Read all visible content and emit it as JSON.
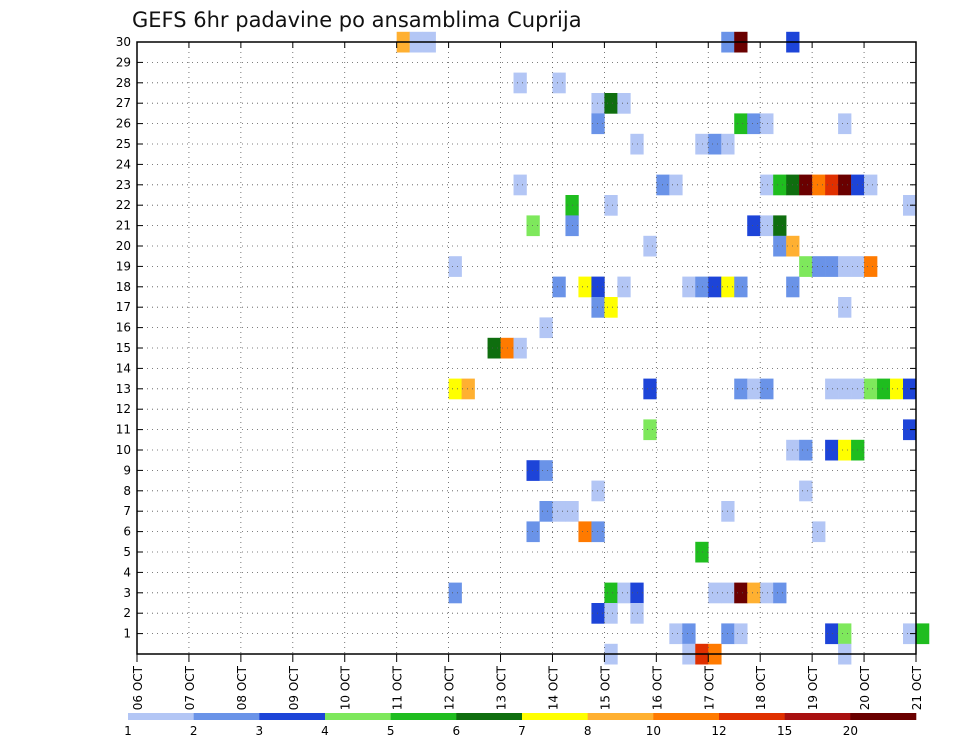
{
  "chart_data": {
    "type": "heatmap",
    "title": "GEFS 6hr padavine po ansamblima Cuprija",
    "xlabel": "",
    "ylabel": "",
    "x_tick_labels": [
      "06 OCT",
      "07 OCT",
      "08 OCT",
      "09 OCT",
      "10 OCT",
      "11 OCT",
      "12 OCT",
      "13 OCT",
      "14 OCT",
      "15 OCT",
      "16 OCT",
      "17 OCT",
      "18 OCT",
      "19 OCT",
      "20 OCT",
      "21 OCT"
    ],
    "y_tick_labels": [
      "1",
      "2",
      "3",
      "4",
      "5",
      "6",
      "7",
      "8",
      "9",
      "10",
      "11",
      "12",
      "13",
      "14",
      "15",
      "16",
      "17",
      "18",
      "19",
      "20",
      "21",
      "22",
      "23",
      "24",
      "25",
      "26",
      "27",
      "28",
      "29",
      "30"
    ],
    "x_unit_days": 1,
    "time_step_hours": 6,
    "grid": true,
    "colorbar": {
      "labels": [
        "1",
        "2",
        "3",
        "4",
        "5",
        "6",
        "7",
        "8",
        "10",
        "12",
        "15",
        "20"
      ],
      "colors": [
        "#b3c6f5",
        "#6a93e8",
        "#1d44d8",
        "#7ee85c",
        "#1fbd1f",
        "#0f6e0f",
        "#ffff00",
        "#ffb031",
        "#ff7a00",
        "#e03000",
        "#a81010",
        "#6a0000"
      ]
    },
    "cells": [
      {
        "member": 30,
        "day": 5.0,
        "level": 8
      },
      {
        "member": 30,
        "day": 5.25,
        "level": 1
      },
      {
        "member": 30,
        "day": 5.5,
        "level": 1
      },
      {
        "member": 30,
        "day": 11.25,
        "level": 2
      },
      {
        "member": 30,
        "day": 11.5,
        "level": 12
      },
      {
        "member": 30,
        "day": 12.5,
        "level": 3
      },
      {
        "member": 28,
        "day": 7.25,
        "level": 1
      },
      {
        "member": 28,
        "day": 8.0,
        "level": 1
      },
      {
        "member": 27,
        "day": 8.75,
        "level": 1
      },
      {
        "member": 27,
        "day": 9.0,
        "level": 6
      },
      {
        "member": 27,
        "day": 9.25,
        "level": 1
      },
      {
        "member": 26,
        "day": 8.75,
        "level": 2
      },
      {
        "member": 26,
        "day": 11.5,
        "level": 5
      },
      {
        "member": 26,
        "day": 11.75,
        "level": 2
      },
      {
        "member": 26,
        "day": 12.0,
        "level": 1
      },
      {
        "member": 26,
        "day": 13.5,
        "level": 1
      },
      {
        "member": 25,
        "day": 9.5,
        "level": 1
      },
      {
        "member": 25,
        "day": 10.75,
        "level": 1
      },
      {
        "member": 25,
        "day": 11.0,
        "level": 2
      },
      {
        "member": 25,
        "day": 11.25,
        "level": 1
      },
      {
        "member": 23,
        "day": 7.25,
        "level": 1
      },
      {
        "member": 23,
        "day": 10.0,
        "level": 2
      },
      {
        "member": 23,
        "day": 10.25,
        "level": 1
      },
      {
        "member": 23,
        "day": 12.0,
        "level": 1
      },
      {
        "member": 23,
        "day": 12.25,
        "level": 5
      },
      {
        "member": 23,
        "day": 12.5,
        "level": 6
      },
      {
        "member": 23,
        "day": 12.75,
        "level": 12
      },
      {
        "member": 23,
        "day": 13.0,
        "level": 9
      },
      {
        "member": 23,
        "day": 13.25,
        "level": 10
      },
      {
        "member": 23,
        "day": 13.5,
        "level": 12
      },
      {
        "member": 23,
        "day": 13.75,
        "level": 3
      },
      {
        "member": 23,
        "day": 14.0,
        "level": 1
      },
      {
        "member": 22,
        "day": 8.25,
        "level": 5
      },
      {
        "member": 22,
        "day": 9.0,
        "level": 1
      },
      {
        "member": 22,
        "day": 14.75,
        "level": 1
      },
      {
        "member": 21,
        "day": 7.5,
        "level": 4
      },
      {
        "member": 21,
        "day": 8.25,
        "level": 2
      },
      {
        "member": 21,
        "day": 11.75,
        "level": 3
      },
      {
        "member": 21,
        "day": 12.0,
        "level": 1
      },
      {
        "member": 21,
        "day": 12.25,
        "level": 6
      },
      {
        "member": 20,
        "day": 9.75,
        "level": 1
      },
      {
        "member": 20,
        "day": 12.25,
        "level": 2
      },
      {
        "member": 20,
        "day": 12.5,
        "level": 8
      },
      {
        "member": 19,
        "day": 6.0,
        "level": 1
      },
      {
        "member": 19,
        "day": 12.75,
        "level": 4
      },
      {
        "member": 19,
        "day": 13.0,
        "level": 2
      },
      {
        "member": 19,
        "day": 13.25,
        "level": 2
      },
      {
        "member": 19,
        "day": 13.5,
        "level": 1
      },
      {
        "member": 19,
        "day": 13.75,
        "level": 1
      },
      {
        "member": 19,
        "day": 14.0,
        "level": 9
      },
      {
        "member": 18,
        "day": 8.0,
        "level": 2
      },
      {
        "member": 18,
        "day": 8.5,
        "level": 7
      },
      {
        "member": 18,
        "day": 8.75,
        "level": 3
      },
      {
        "member": 18,
        "day": 9.25,
        "level": 1
      },
      {
        "member": 18,
        "day": 10.5,
        "level": 1
      },
      {
        "member": 18,
        "day": 10.75,
        "level": 2
      },
      {
        "member": 18,
        "day": 11.0,
        "level": 3
      },
      {
        "member": 18,
        "day": 11.25,
        "level": 7
      },
      {
        "member": 18,
        "day": 11.5,
        "level": 2
      },
      {
        "member": 18,
        "day": 12.5,
        "level": 2
      },
      {
        "member": 17,
        "day": 8.75,
        "level": 2
      },
      {
        "member": 17,
        "day": 9.0,
        "level": 7
      },
      {
        "member": 17,
        "day": 13.5,
        "level": 1
      },
      {
        "member": 16,
        "day": 7.75,
        "level": 1
      },
      {
        "member": 15,
        "day": 6.75,
        "level": 6
      },
      {
        "member": 15,
        "day": 7.0,
        "level": 9
      },
      {
        "member": 15,
        "day": 7.25,
        "level": 1
      },
      {
        "member": 13,
        "day": 6.0,
        "level": 7
      },
      {
        "member": 13,
        "day": 6.25,
        "level": 8
      },
      {
        "member": 13,
        "day": 9.75,
        "level": 3
      },
      {
        "member": 13,
        "day": 11.5,
        "level": 2
      },
      {
        "member": 13,
        "day": 11.75,
        "level": 1
      },
      {
        "member": 13,
        "day": 12.0,
        "level": 2
      },
      {
        "member": 13,
        "day": 13.25,
        "level": 1
      },
      {
        "member": 13,
        "day": 13.5,
        "level": 1
      },
      {
        "member": 13,
        "day": 13.75,
        "level": 1
      },
      {
        "member": 13,
        "day": 14.0,
        "level": 4
      },
      {
        "member": 13,
        "day": 14.25,
        "level": 5
      },
      {
        "member": 13,
        "day": 14.5,
        "level": 7
      },
      {
        "member": 13,
        "day": 14.75,
        "level": 3
      },
      {
        "member": 11,
        "day": 9.75,
        "level": 4
      },
      {
        "member": 11,
        "day": 14.75,
        "level": 3
      },
      {
        "member": 10,
        "day": 12.5,
        "level": 1
      },
      {
        "member": 10,
        "day": 12.75,
        "level": 2
      },
      {
        "member": 10,
        "day": 13.25,
        "level": 3
      },
      {
        "member": 10,
        "day": 13.5,
        "level": 7
      },
      {
        "member": 10,
        "day": 13.75,
        "level": 5
      },
      {
        "member": 9,
        "day": 7.5,
        "level": 3
      },
      {
        "member": 9,
        "day": 7.75,
        "level": 2
      },
      {
        "member": 8,
        "day": 8.75,
        "level": 1
      },
      {
        "member": 8,
        "day": 12.75,
        "level": 1
      },
      {
        "member": 7,
        "day": 7.75,
        "level": 2
      },
      {
        "member": 7,
        "day": 8.0,
        "level": 1
      },
      {
        "member": 7,
        "day": 8.25,
        "level": 1
      },
      {
        "member": 7,
        "day": 11.25,
        "level": 1
      },
      {
        "member": 6,
        "day": 7.5,
        "level": 2
      },
      {
        "member": 6,
        "day": 8.5,
        "level": 9
      },
      {
        "member": 6,
        "day": 8.75,
        "level": 2
      },
      {
        "member": 6,
        "day": 13.0,
        "level": 1
      },
      {
        "member": 5,
        "day": 10.75,
        "level": 5
      },
      {
        "member": 3,
        "day": 6.0,
        "level": 2
      },
      {
        "member": 3,
        "day": 9.0,
        "level": 5
      },
      {
        "member": 3,
        "day": 9.25,
        "level": 1
      },
      {
        "member": 3,
        "day": 9.5,
        "level": 3
      },
      {
        "member": 3,
        "day": 11.0,
        "level": 1
      },
      {
        "member": 3,
        "day": 11.25,
        "level": 1
      },
      {
        "member": 3,
        "day": 11.5,
        "level": 12
      },
      {
        "member": 3,
        "day": 11.75,
        "level": 8
      },
      {
        "member": 3,
        "day": 12.0,
        "level": 1
      },
      {
        "member": 3,
        "day": 12.25,
        "level": 2
      },
      {
        "member": 2,
        "day": 8.75,
        "level": 3
      },
      {
        "member": 2,
        "day": 9.0,
        "level": 1
      },
      {
        "member": 2,
        "day": 9.5,
        "level": 1
      },
      {
        "member": 1,
        "day": 10.25,
        "level": 1
      },
      {
        "member": 1,
        "day": 10.5,
        "level": 2
      },
      {
        "member": 1,
        "day": 11.25,
        "level": 2
      },
      {
        "member": 1,
        "day": 11.5,
        "level": 1
      },
      {
        "member": 1,
        "day": 13.25,
        "level": 3
      },
      {
        "member": 1,
        "day": 13.5,
        "level": 4
      },
      {
        "member": 1,
        "day": 14.75,
        "level": 1
      },
      {
        "member": 1,
        "day": 15.0,
        "level": 5
      },
      {
        "member": 0,
        "day": 9.0,
        "level": 1
      },
      {
        "member": 0,
        "day": 10.5,
        "level": 1
      },
      {
        "member": 0,
        "day": 10.75,
        "level": 10
      },
      {
        "member": 0,
        "day": 11.0,
        "level": 9
      },
      {
        "member": 0,
        "day": 13.5,
        "level": 1
      }
    ]
  }
}
